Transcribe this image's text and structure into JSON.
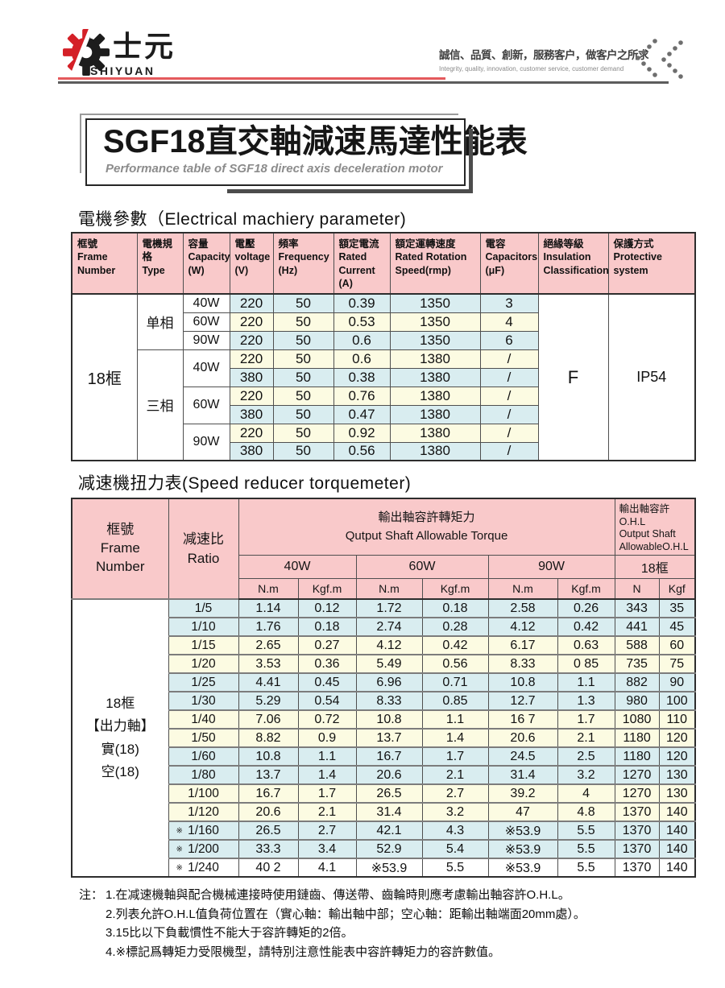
{
  "header": {
    "brand_zh": "士元",
    "brand_en": "SHIYUAN",
    "slogan_zh": "誠信、品質、創新，服務客户，做客户之所求",
    "slogan_en": "Integrity, quality, innovation, customer service, customer demand"
  },
  "title_block": {
    "title": "SGF18直交軸減速馬達性能表",
    "subtitle": "Performance table of SGF18 direct axis deceleration motor"
  },
  "colors": {
    "brand_red": "#d42027",
    "rule_red": "#e4595c",
    "rule_gray": "#5c5c5c",
    "header_pink": "#f9c9ca",
    "row_blue": "#d9edf0",
    "row_cream": "#fcfbe2"
  },
  "elec": {
    "heading": "電機參數（Electrical machiery parameter)",
    "headers": [
      "框號\nFrame\nNumber",
      "電機規格\nType",
      "容量\nCapacity\n(W)",
      "電壓\nvoltage\n(V)",
      "頻率\nFrequency\n(Hz)",
      "額定電流\nRated\nCurrent\n(A)",
      "額定運轉速度\n Rated Rotation\nSpeed(rmp)",
      "電容\n Capacitors\n(μF)",
      "絕緣等級\nInsulation\nClassification",
      "保護方式\nProtective\nsystem"
    ],
    "frame": "18框",
    "phase1_label": "单相",
    "phase3_label": "三相",
    "insulation": "F",
    "protection": "IP54",
    "rows": [
      {
        "cap": "40W",
        "v": [
          "220",
          "50",
          "0.39",
          "1350",
          "3"
        ]
      },
      {
        "cap": "60W",
        "v": [
          "220",
          "50",
          "0.53",
          "1350",
          "4"
        ]
      },
      {
        "cap": "90W",
        "v": [
          "220",
          "50",
          "0.6",
          "1350",
          "6"
        ]
      },
      {
        "cap": "40W",
        "v": [
          "220",
          "50",
          "0.6",
          "1380",
          "/"
        ]
      },
      {
        "v": [
          "380",
          "50",
          "0.38",
          "1380",
          "/"
        ]
      },
      {
        "cap": "60W",
        "v": [
          "220",
          "50",
          "0.76",
          "1380",
          "/"
        ]
      },
      {
        "v": [
          "380",
          "50",
          "0.47",
          "1380",
          "/"
        ]
      },
      {
        "cap": "90W",
        "v": [
          "220",
          "50",
          "0.92",
          "1380",
          "/"
        ]
      },
      {
        "v": [
          "380",
          "50",
          "0.56",
          "1380",
          "/"
        ]
      }
    ]
  },
  "torque": {
    "heading": "减速機扭力表(Speed reducer torquemeter)",
    "col_frame": "框號\nFrame\nNumber",
    "col_ratio": "减速比\nRatio",
    "torque_header_zh": "輸出軸容許轉矩力",
    "torque_header_en": "Qutput Shaft Allowable Torque",
    "ohl_header": "輸出軸容許O.H.L\nOutput Shaft\nAllowableO.H.L",
    "power_cols": [
      "40W",
      "60W",
      "90W",
      "18框"
    ],
    "unit_cols": [
      "N.m",
      "Kgf.m",
      "N.m",
      "Kgf.m",
      "N.m",
      "Kgf.m",
      "N",
      "Kgf"
    ],
    "frame_label": "18框\n【出力軸】\n實(18)\n空(18)",
    "rows": [
      {
        "star": false,
        "ratio": "1/5",
        "color": "blue",
        "v": [
          "1.14",
          "0.12",
          "1.72",
          "0.18",
          "2.58",
          "0.26",
          "343",
          "35"
        ]
      },
      {
        "star": false,
        "ratio": "1/10",
        "color": "blue",
        "v": [
          "1.76",
          "0.18",
          "2.74",
          "0.28",
          "4.12",
          "0.42",
          "441",
          "45"
        ]
      },
      {
        "star": false,
        "ratio": "1/15",
        "color": "cream",
        "v": [
          "2.65",
          "0.27",
          "4.12",
          "0.42",
          "6.17",
          "0.63",
          "588",
          "60"
        ]
      },
      {
        "star": false,
        "ratio": "1/20",
        "color": "cream",
        "v": [
          "3.53",
          "0.36",
          "5.49",
          "0.56",
          "8.33",
          "0 85",
          "735",
          "75"
        ]
      },
      {
        "star": false,
        "ratio": "1/25",
        "color": "blue",
        "v": [
          "4.41",
          "0.45",
          "6.96",
          "0.71",
          "10.8",
          "1.1",
          "882",
          "90"
        ]
      },
      {
        "star": false,
        "ratio": "1/30",
        "color": "blue",
        "v": [
          "5.29",
          "0.54",
          "8.33",
          "0.85",
          "12.7",
          "1.3",
          "980",
          "100"
        ]
      },
      {
        "star": false,
        "ratio": "1/40",
        "color": "cream",
        "v": [
          "7.06",
          "0.72",
          "10.8",
          "1.1",
          "16 7",
          "1.7",
          "1080",
          "110"
        ]
      },
      {
        "star": false,
        "ratio": "1/50",
        "color": "cream",
        "v": [
          "8.82",
          "0.9",
          "13.7",
          "1.4",
          "20.6",
          "2.1",
          "1180",
          "120"
        ]
      },
      {
        "star": false,
        "ratio": "1/60",
        "color": "blue",
        "v": [
          "10.8",
          "1.1",
          "16.7",
          "1.7",
          "24.5",
          "2.5",
          "1180",
          "120"
        ]
      },
      {
        "star": false,
        "ratio": "1/80",
        "color": "blue",
        "v": [
          "13.7",
          "1.4",
          "20.6",
          "2.1",
          "31.4",
          "3.2",
          "1270",
          "130"
        ]
      },
      {
        "star": false,
        "ratio": "1/100",
        "color": "cream",
        "v": [
          "16.7",
          "1.7",
          "26.5",
          "2.7",
          "39.2",
          "4",
          "1270",
          "130"
        ]
      },
      {
        "star": false,
        "ratio": "1/120",
        "color": "cream",
        "v": [
          "20.6",
          "2.1",
          "31.4",
          "3.2",
          "47",
          "4.8",
          "1370",
          "140"
        ]
      },
      {
        "star": true,
        "ratio": "1/160",
        "color": "blue",
        "v": [
          "26.5",
          "2.7",
          "42.1",
          "4.3",
          "※53.9",
          "5.5",
          "1370",
          "140"
        ]
      },
      {
        "star": true,
        "ratio": "1/200",
        "color": "blue",
        "v": [
          "33.3",
          "3.4",
          "52.9",
          "5.4",
          "※53.9",
          "5.5",
          "1370",
          "140"
        ]
      },
      {
        "star": true,
        "ratio": "1/240",
        "color": "white",
        "v": [
          "40 2",
          "4.1",
          "※53.9",
          "5.5",
          "※53.9",
          "5.5",
          "1370",
          "140"
        ]
      }
    ]
  },
  "notes": {
    "prefix": "注：",
    "items": [
      "1.在减速機軸與配合機械連接時使用鏈齒、傳送帶、齒輪時則應考慮輸出軸容許O.H.L。",
      "2.列表允許O.H.L值負荷位置在（實心軸：輸出軸中部；空心軸：距輸出軸端面20mm處）。",
      "3.15比以下負載慣性不能大于容許轉矩的2倍。",
      "4.※標記爲轉矩力受限機型，請特別注意性能表中容許轉矩力的容許數值。"
    ]
  }
}
